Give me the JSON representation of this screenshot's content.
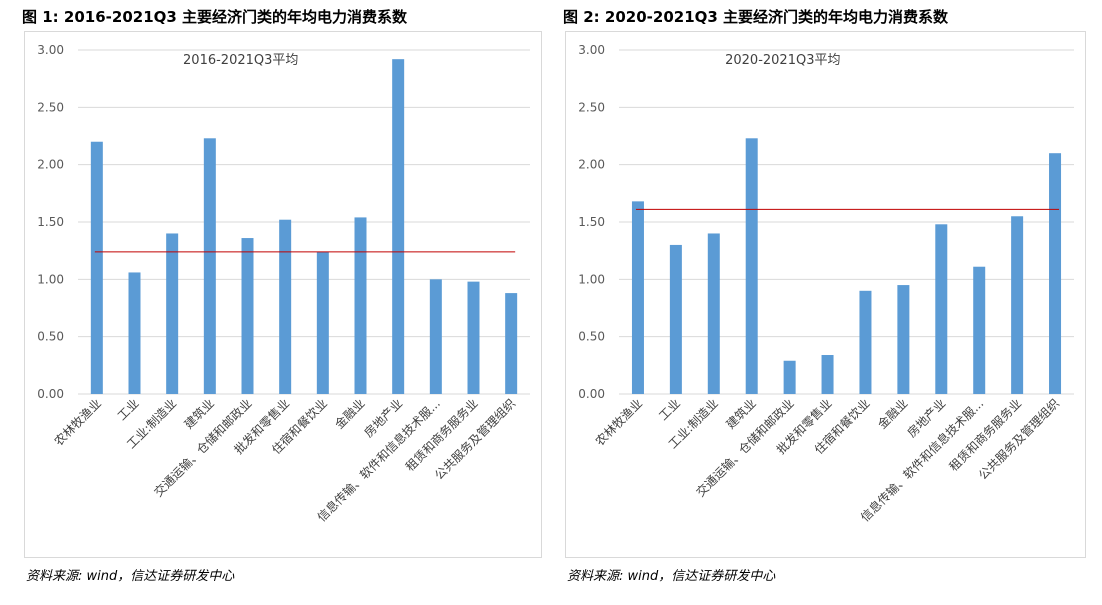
{
  "chart_data": [
    {
      "type": "bar",
      "figure_label": "图 1:",
      "title": "2016-2021Q3 主要经济门类的年均电力消费系数",
      "annotation": "2016-2021Q3平均",
      "categories": [
        "农林牧渔业",
        "工业",
        "工业:制造业",
        "建筑业",
        "交通运输、仓储和邮政业",
        "批发和零售业",
        "住宿和餐饮业",
        "金融业",
        "房地产业",
        "信息传输、软件和信息技术服...",
        "租赁和商务服务业",
        "公共服务及管理组织"
      ],
      "values": [
        2.2,
        1.06,
        1.4,
        2.23,
        1.36,
        1.52,
        1.24,
        1.54,
        2.92,
        1.0,
        0.98,
        0.88
      ],
      "average_line": 1.24,
      "ylim": [
        0,
        3.0
      ],
      "yticks": [
        "0.00",
        "0.50",
        "1.00",
        "1.50",
        "2.00",
        "2.50",
        "3.00"
      ],
      "bar_color": "#5b9bd5",
      "line_color": "#c00000",
      "grid": true,
      "source": "资料来源: wind，信达证券研发中心"
    },
    {
      "type": "bar",
      "figure_label": "图 2:",
      "title": "2020-2021Q3 主要经济门类的年均电力消费系数",
      "annotation": "2020-2021Q3平均",
      "categories": [
        "农林牧渔业",
        "工业",
        "工业:制造业",
        "建筑业",
        "交通运输、仓储和邮政业",
        "批发和零售业",
        "住宿和餐饮业",
        "金融业",
        "房地产业",
        "信息传输、软件和信息技术服...",
        "租赁和商务服务业",
        "公共服务及管理组织"
      ],
      "values": [
        1.68,
        1.3,
        1.4,
        2.23,
        0.29,
        0.34,
        0.9,
        0.95,
        1.48,
        1.11,
        1.55,
        2.1
      ],
      "average_line": 1.61,
      "ylim": [
        0,
        3.0
      ],
      "yticks": [
        "0.00",
        "0.50",
        "1.00",
        "1.50",
        "2.00",
        "2.50",
        "3.00"
      ],
      "bar_color": "#5b9bd5",
      "line_color": "#c00000",
      "grid": true,
      "source": "资料来源: wind，信达证券研发中心"
    }
  ]
}
